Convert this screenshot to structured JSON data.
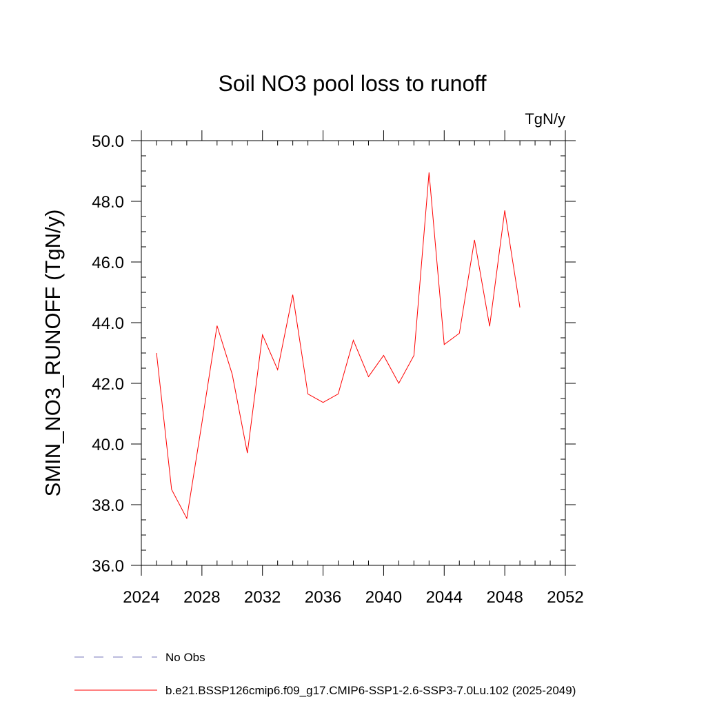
{
  "chart_data": {
    "type": "line",
    "title": "Soil NO3 pool loss to runoff",
    "units_label": "TgN/y",
    "ylabel": "SMIN_NO3_RUNOFF  (TgN/y)",
    "xlabel": "",
    "xlim": [
      2024,
      2052
    ],
    "ylim": [
      36.0,
      50.0
    ],
    "x_ticks": [
      2024,
      2028,
      2032,
      2036,
      2040,
      2044,
      2048,
      2052
    ],
    "x_tick_labels": [
      "2024",
      "2028",
      "2032",
      "2036",
      "2040",
      "2044",
      "2048",
      "2052"
    ],
    "x_minor_step": 1,
    "y_ticks": [
      36.0,
      38.0,
      40.0,
      42.0,
      44.0,
      46.0,
      48.0,
      50.0
    ],
    "y_tick_labels": [
      "36.0",
      "38.0",
      "40.0",
      "42.0",
      "44.0",
      "46.0",
      "48.0",
      "50.0"
    ],
    "y_minor_step": 0.5,
    "grid": false,
    "legend_position": "bottom",
    "series": [
      {
        "name": "b.e21.BSSP126cmip6.f09_g17.CMIP6-SSP1-2.6-SSP3-7.0Lu.102 (2025-2049)",
        "color": "#ff0000",
        "style": "solid",
        "x": [
          2025,
          2026,
          2027,
          2028,
          2029,
          2030,
          2031,
          2032,
          2033,
          2034,
          2035,
          2036,
          2037,
          2038,
          2039,
          2040,
          2041,
          2042,
          2043,
          2044,
          2045,
          2046,
          2047,
          2048,
          2049
        ],
        "values": [
          43.0,
          38.5,
          37.55,
          40.7,
          43.9,
          42.3,
          39.7,
          43.6,
          42.45,
          44.92,
          41.65,
          41.37,
          41.65,
          43.42,
          42.22,
          42.92,
          42.0,
          42.92,
          48.95,
          43.28,
          43.65,
          46.73,
          43.88,
          47.7,
          44.5
        ]
      }
    ],
    "legend": [
      {
        "label": "No Obs",
        "color": "#7777bb",
        "style": "dashed"
      },
      {
        "label": "b.e21.BSSP126cmip6.f09_g17.CMIP6-SSP1-2.6-SSP3-7.0Lu.102 (2025-2049)",
        "color": "#ff0000",
        "style": "solid"
      }
    ]
  }
}
